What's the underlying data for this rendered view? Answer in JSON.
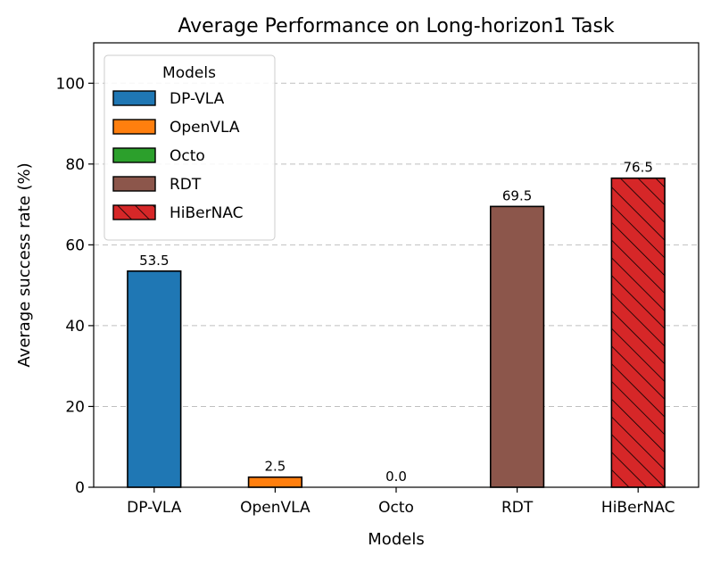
{
  "chart_data": {
    "type": "bar",
    "title": "Average Performance on Long-horizon1 Task",
    "xlabel": "Models",
    "ylabel": "Average success rate (%)",
    "categories": [
      "DP-VLA",
      "OpenVLA",
      "Octo",
      "RDT",
      "HiBerNAC"
    ],
    "values": [
      53.5,
      2.5,
      0.0,
      69.5,
      76.5
    ],
    "data_labels": [
      "53.5",
      "2.5",
      "0.0",
      "69.5",
      "76.5"
    ],
    "colors": [
      "#1f77b4",
      "#ff7f0e",
      "#2ca02c",
      "#8c564b",
      "#d62728"
    ],
    "hatched": [
      false,
      false,
      false,
      false,
      true
    ],
    "ylim": [
      0,
      110
    ],
    "yticks": [
      0,
      20,
      40,
      60,
      80,
      100
    ],
    "grid": "horizontal dashed",
    "legend": {
      "title": "Models",
      "placement": "top-left",
      "entries": [
        "DP-VLA",
        "OpenVLA",
        "Octo",
        "RDT",
        "HiBerNAC"
      ]
    }
  }
}
